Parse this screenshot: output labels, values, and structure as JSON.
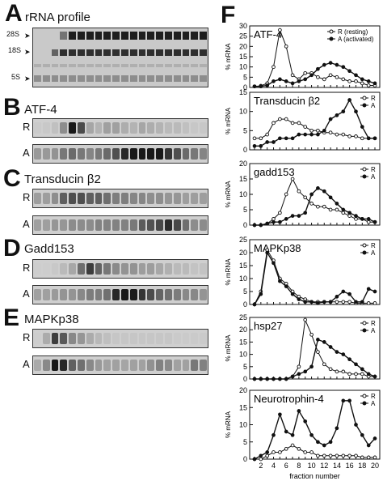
{
  "figure": {
    "left_panels": [
      {
        "letter": "A",
        "title": "rRNA profile"
      },
      {
        "letter": "B",
        "title": "ATF-4"
      },
      {
        "letter": "C",
        "title": "Transducin β2"
      },
      {
        "letter": "D",
        "title": "Gadd153"
      },
      {
        "letter": "E",
        "title": "MAPKp38"
      }
    ],
    "rrna_markers": [
      "28S",
      "18S",
      "5S"
    ],
    "row_labels": {
      "resting": "R",
      "activated": "A"
    },
    "right_letter": "F",
    "xlabel": "fraction number"
  },
  "chart_data": [
    {
      "type": "line",
      "title": "ATF-4",
      "ylabel": "% mRNA",
      "xlabel": "",
      "ylim": [
        0,
        30
      ],
      "yticks": [
        0,
        5,
        10,
        15,
        20,
        25,
        30
      ],
      "legend": [
        "R (resting)",
        "A (activated)"
      ],
      "legend_position": "top-right",
      "x": [
        1,
        2,
        3,
        4,
        5,
        6,
        7,
        8,
        9,
        10,
        11,
        12,
        13,
        14,
        15,
        16,
        17,
        18,
        19,
        20
      ],
      "series": [
        {
          "name": "R (resting)",
          "marker": "open",
          "values": [
            0.5,
            0.8,
            2,
            10,
            28,
            20,
            6,
            4,
            7,
            7,
            5,
            4,
            6,
            5,
            4,
            3,
            3,
            2,
            1,
            1
          ]
        },
        {
          "name": "A (activated)",
          "marker": "filled",
          "values": [
            0.5,
            0.5,
            1,
            3,
            4,
            3,
            2,
            3,
            4,
            6,
            9,
            11,
            12,
            11,
            10,
            8,
            6,
            4,
            3,
            2
          ]
        }
      ]
    },
    {
      "type": "line",
      "title": "Transducin β2",
      "ylabel": "% mRNA",
      "xlabel": "",
      "ylim": [
        0,
        15
      ],
      "yticks": [
        0,
        5,
        10,
        15
      ],
      "legend": [
        "R",
        "A"
      ],
      "legend_position": "top-right",
      "x": [
        1,
        2,
        3,
        4,
        5,
        6,
        7,
        8,
        9,
        10,
        11,
        12,
        13,
        14,
        15,
        16,
        17,
        18,
        19,
        20
      ],
      "series": [
        {
          "name": "R",
          "marker": "open",
          "values": [
            3,
            3,
            4,
            7,
            8,
            8,
            7,
            7,
            6,
            5,
            5,
            4.5,
            4.5,
            4,
            4,
            3.5,
            3.5,
            3,
            3,
            3
          ]
        },
        {
          "name": "A",
          "marker": "filled",
          "values": [
            1,
            1,
            2,
            2,
            3,
            3,
            3,
            4,
            4,
            4,
            4,
            5,
            8,
            9,
            10,
            13,
            10,
            6,
            3,
            3
          ]
        }
      ]
    },
    {
      "type": "line",
      "title": "gadd153",
      "ylabel": "% mRNA",
      "xlabel": "",
      "ylim": [
        0,
        20
      ],
      "yticks": [
        0,
        5,
        10,
        15,
        20
      ],
      "legend": [
        "R",
        "A"
      ],
      "legend_position": "top-right",
      "x": [
        1,
        2,
        3,
        4,
        5,
        6,
        7,
        8,
        9,
        10,
        11,
        12,
        13,
        14,
        15,
        16,
        17,
        18,
        19,
        20
      ],
      "series": [
        {
          "name": "R",
          "marker": "open",
          "values": [
            0,
            0,
            0.5,
            2,
            4,
            10,
            15,
            11,
            9,
            7,
            6,
            6,
            5,
            5,
            4,
            3,
            2,
            2,
            1,
            1
          ]
        },
        {
          "name": "A",
          "marker": "filled",
          "values": [
            0,
            0,
            0.5,
            1,
            1,
            2,
            3,
            3,
            4,
            10,
            12,
            11,
            9,
            7,
            5,
            4,
            3,
            2,
            2,
            1
          ]
        }
      ]
    },
    {
      "type": "line",
      "title": "MAPKp38",
      "ylabel": "% mRNA",
      "xlabel": "",
      "ylim": [
        0,
        25
      ],
      "yticks": [
        0,
        5,
        10,
        15,
        20,
        25
      ],
      "legend": [
        "R",
        "A"
      ],
      "legend_position": "top-right",
      "x": [
        1,
        2,
        3,
        4,
        5,
        6,
        7,
        8,
        9,
        10,
        11,
        12,
        13,
        14,
        15,
        16,
        17,
        18,
        19,
        20
      ],
      "series": [
        {
          "name": "R",
          "marker": "open",
          "values": [
            0,
            5,
            21,
            17,
            10,
            8,
            5,
            3,
            2,
            1,
            1,
            1,
            1,
            1,
            1,
            1,
            0.5,
            0.5,
            0.5,
            0.5
          ]
        },
        {
          "name": "A",
          "marker": "filled",
          "values": [
            0,
            4,
            20,
            16,
            9,
            7,
            4,
            2,
            1,
            1,
            0.5,
            1,
            1,
            3,
            5,
            4,
            1,
            1,
            6,
            5
          ]
        }
      ]
    },
    {
      "type": "line",
      "title": "hsp27",
      "ylabel": "% mRNA",
      "xlabel": "",
      "ylim": [
        0,
        25
      ],
      "yticks": [
        0,
        5,
        10,
        15,
        20,
        25
      ],
      "legend": [
        "R",
        "A"
      ],
      "legend_position": "top-right",
      "x": [
        1,
        2,
        3,
        4,
        5,
        6,
        7,
        8,
        9,
        10,
        11,
        12,
        13,
        14,
        15,
        16,
        17,
        18,
        19,
        20
      ],
      "series": [
        {
          "name": "R",
          "marker": "open",
          "values": [
            0,
            0,
            0,
            0,
            0,
            0,
            1,
            5,
            24,
            18,
            11,
            6,
            4,
            3,
            3,
            2,
            2,
            2,
            1,
            1
          ]
        },
        {
          "name": "A",
          "marker": "filled",
          "values": [
            0,
            0,
            0,
            0,
            0,
            0,
            1,
            2,
            3,
            5,
            16,
            15,
            13,
            11,
            10,
            8,
            6,
            4,
            2,
            1
          ]
        }
      ]
    },
    {
      "type": "line",
      "title": "Neurotrophin-4",
      "ylabel": "% mRNA",
      "xlabel": "fraction number",
      "ylim": [
        0,
        20
      ],
      "yticks": [
        0,
        5,
        10,
        15,
        20
      ],
      "xticks": [
        2,
        4,
        6,
        8,
        10,
        12,
        14,
        16,
        18,
        20
      ],
      "legend": [
        "R",
        "A"
      ],
      "legend_position": "top-right",
      "x": [
        1,
        2,
        3,
        4,
        5,
        6,
        7,
        8,
        9,
        10,
        11,
        12,
        13,
        14,
        15,
        16,
        17,
        18,
        19,
        20
      ],
      "series": [
        {
          "name": "R",
          "marker": "open",
          "values": [
            0,
            0,
            1,
            2,
            2,
            3,
            4,
            3,
            2,
            2,
            1,
            1,
            1,
            1,
            1,
            1,
            1,
            0.5,
            0.5,
            0.5
          ]
        },
        {
          "name": "A",
          "marker": "filled",
          "values": [
            0,
            1,
            2,
            7,
            13,
            8,
            7,
            14,
            11,
            7,
            5,
            4,
            5,
            9,
            17,
            17,
            10,
            7,
            4,
            6
          ]
        }
      ]
    }
  ]
}
